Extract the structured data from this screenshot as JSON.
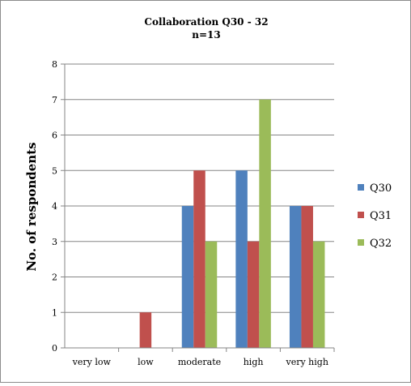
{
  "chart_data": {
    "type": "bar",
    "title": "Collaboration Q30 - 32",
    "subtitle": "n=13",
    "xlabel": "",
    "ylabel": "No. of respondents",
    "categories": [
      "very low",
      "low",
      "moderate",
      "high",
      "very high"
    ],
    "series": [
      {
        "name": "Q30",
        "color": "#4f81bd",
        "values": [
          0,
          0,
          4,
          5,
          4
        ]
      },
      {
        "name": "Q31",
        "color": "#c0504d",
        "values": [
          0,
          1,
          5,
          3,
          4
        ]
      },
      {
        "name": "Q32",
        "color": "#9bbb59",
        "values": [
          0,
          0,
          3,
          7,
          3
        ]
      }
    ],
    "ylim": [
      0,
      8
    ],
    "yticks": [
      0,
      1,
      2,
      3,
      4,
      5,
      6,
      7,
      8
    ],
    "grid": true,
    "legend": "right"
  }
}
